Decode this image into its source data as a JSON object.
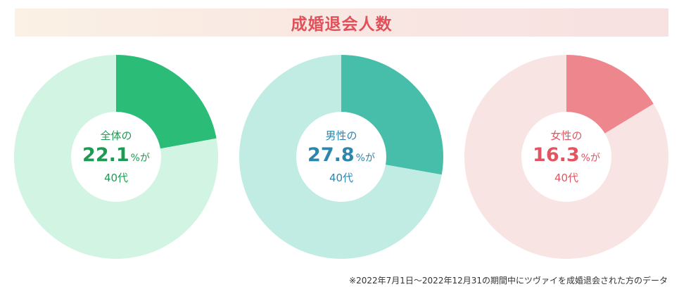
{
  "header": {
    "title": "成婚退会人数"
  },
  "chart_data": [
    {
      "type": "pie",
      "title": "",
      "slices": [
        {
          "label": "40代",
          "value": 22.1
        },
        {
          "label": "",
          "value": 77.9
        }
      ],
      "center": {
        "label": "全体の",
        "value": "22.1",
        "unit": "%が",
        "category": "40代"
      },
      "colors": {
        "highlight": "#2bbd78",
        "rest": "#d1f4e3",
        "text": "#1f9a55"
      }
    },
    {
      "type": "pie",
      "title": "",
      "slices": [
        {
          "label": "40代",
          "value": 27.8
        },
        {
          "label": "",
          "value": 72.2
        }
      ],
      "center": {
        "label": "男性の",
        "value": "27.8",
        "unit": "%が",
        "category": "40代"
      },
      "colors": {
        "highlight": "#47beaa",
        "rest": "#c0ece4",
        "text": "#2f86ad"
      }
    },
    {
      "type": "pie",
      "title": "",
      "slices": [
        {
          "label": "40代",
          "value": 16.3
        },
        {
          "label": "",
          "value": 83.7
        }
      ],
      "center": {
        "label": "女性の",
        "value": "16.3",
        "unit": "%が",
        "category": "40代"
      },
      "colors": {
        "highlight": "#ed878d",
        "rest": "#f9e4e4",
        "text": "#e05561"
      }
    }
  ],
  "footnote": "※2022年7月1日〜2022年12月31の期間中にツヴァイを成婚退会された方のデータ"
}
